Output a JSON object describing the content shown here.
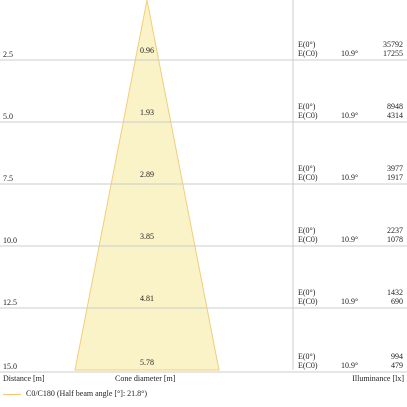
{
  "chart_data": {
    "type": "cone_diagram",
    "x_label": "Cone diameter [m]",
    "y_label": "Distance [m]",
    "right_label": "Illuminance [lx]",
    "legend": "C0/C180 (Half beam angle [°]: 21.8°)",
    "rows": [
      {
        "distance": "2.5",
        "diameter": "0.96",
        "e0": "35792",
        "ec0": "17255",
        "angle": "10.9°"
      },
      {
        "distance": "5.0",
        "diameter": "1.93",
        "e0": "8948",
        "ec0": "4314",
        "angle": "10.9°"
      },
      {
        "distance": "7.5",
        "diameter": "2.89",
        "e0": "3977",
        "ec0": "1917",
        "angle": "10.9°"
      },
      {
        "distance": "10.0",
        "diameter": "3.85",
        "e0": "2237",
        "ec0": "1078",
        "angle": "10.9°"
      },
      {
        "distance": "12.5",
        "diameter": "4.81",
        "e0": "1432",
        "ec0": "690",
        "angle": "10.9°"
      },
      {
        "distance": "15.0",
        "diameter": "5.78",
        "e0": "994",
        "ec0": "479",
        "angle": "10.9°"
      }
    ],
    "e0_label": "E(0°)",
    "ec0_label": "E(C0)",
    "colors": {
      "cone_fill": "#faf3c8",
      "cone_stroke": "#f0cf7a",
      "grid": "#cccccc"
    }
  }
}
